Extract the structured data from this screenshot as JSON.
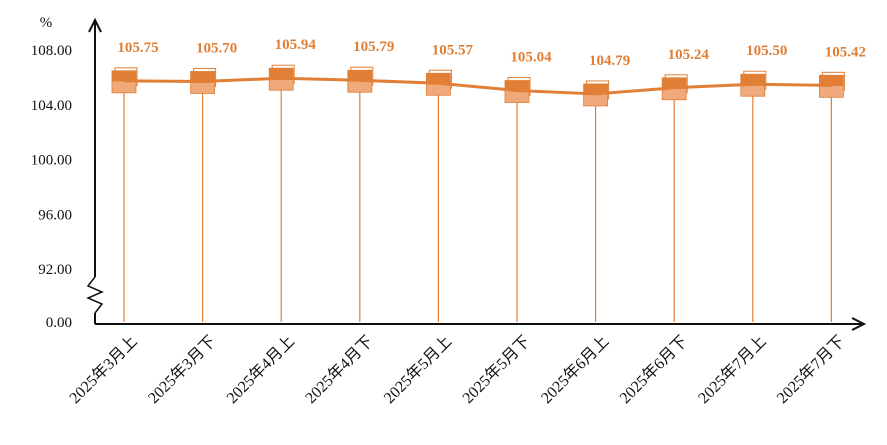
{
  "chart_data": {
    "type": "line",
    "ylabel": "%",
    "categories": [
      "2025年3月上",
      "2025年3月下",
      "2025年4月上",
      "2025年4月下",
      "2025年5月上",
      "2025年5月下",
      "2025年6月上",
      "2025年6月下",
      "2025年7月上",
      "2025年7月下"
    ],
    "series": [
      {
        "values": [
          105.75,
          105.7,
          105.94,
          105.79,
          105.57,
          105.04,
          104.79,
          105.24,
          105.5,
          105.42
        ]
      }
    ],
    "y_ticks": [
      "0.00",
      "92.00",
      "96.00",
      "100.00",
      "104.00",
      "108.00"
    ],
    "y_tick_values": [
      0,
      92,
      96,
      100,
      104,
      108
    ],
    "axis_break": true,
    "ylim": [
      92,
      108
    ],
    "grid": false,
    "data_labels": [
      "105.75",
      "105.70",
      "105.94",
      "105.79",
      "105.57",
      "105.04",
      "104.79",
      "105.24",
      "105.50",
      "105.42"
    ],
    "colors": {
      "line": "#E07F35",
      "box_dark": "#E07F35",
      "box_light": "#EFA97A",
      "label": "#E07F35",
      "axis": "#111111"
    }
  }
}
